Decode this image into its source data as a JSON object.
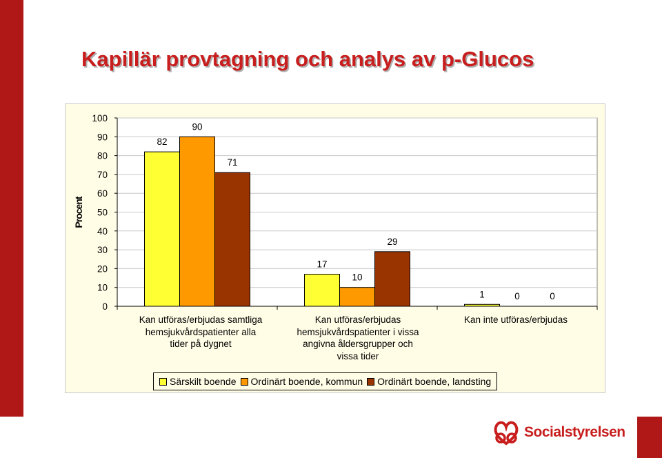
{
  "slide": {
    "title": "Kapillär provtagning och analys av p-Glucos",
    "logo_text": "Socialstyrelsen"
  },
  "colors": {
    "band": "#b01818",
    "title": "#c81e1e",
    "series": [
      "#ffff33",
      "#ff9900",
      "#993300"
    ]
  },
  "chart_data": {
    "type": "bar",
    "title": "",
    "xlabel": "",
    "ylabel": "Procent",
    "ylim": [
      0,
      100
    ],
    "yticks": [
      0,
      10,
      20,
      30,
      40,
      50,
      60,
      70,
      80,
      90,
      100
    ],
    "grid": true,
    "legend_position": "bottom",
    "categories": [
      [
        "Kan utföras/erbjudas samtliga",
        "hemsjukvårdspatienter alla",
        "tider på dygnet"
      ],
      [
        "Kan utföras/erbjudas",
        "hemsjukvårdspatienter i vissa",
        "angivna åldersgrupper och",
        "vissa tider"
      ],
      [
        "Kan inte utföras/erbjudas"
      ]
    ],
    "series": [
      {
        "name": "Särskilt boende",
        "values": [
          82,
          17,
          1
        ]
      },
      {
        "name": "Ordinärt boende, kommun",
        "values": [
          90,
          10,
          0
        ]
      },
      {
        "name": "Ordinärt boende, landsting",
        "values": [
          71,
          29,
          0
        ]
      }
    ]
  }
}
